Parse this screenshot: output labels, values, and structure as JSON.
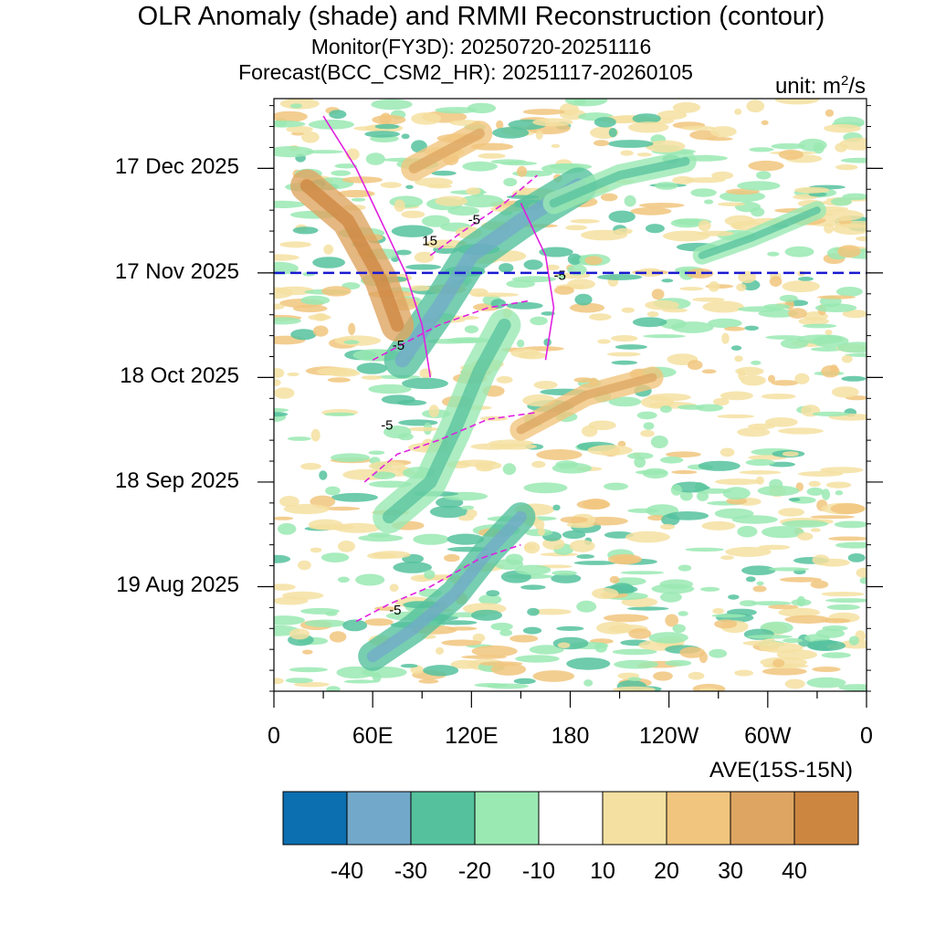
{
  "chart_data": {
    "type": "heatmap",
    "title": "OLR Anomaly (shade) and RMMI Reconstruction (contour)",
    "subtitle_monitor": "Monitor(FY3D): 20250720-20251116",
    "subtitle_forecast": "Forecast(BCC_CSM2_HR): 20251117-20260105",
    "unit_prefix": "unit: m",
    "unit_exp": "2",
    "unit_suffix": "/s",
    "region_label": "AVE(15S-15N)",
    "x_axis": {
      "ticks": [
        "0",
        "60E",
        "120E",
        "180",
        "120W",
        "60W",
        "0"
      ],
      "tick_lon": [
        0,
        60,
        120,
        180,
        240,
        300,
        360
      ],
      "range": [
        0,
        360
      ]
    },
    "y_axis": {
      "ticks": [
        "17 Dec 2025",
        "17 Nov 2025",
        "18 Oct 2025",
        "18 Sep 2025",
        "19 Aug 2025"
      ],
      "tick_day": [
        150,
        120,
        90,
        60,
        30
      ],
      "range": [
        0,
        170
      ],
      "start_date": "20250720",
      "end_date": "20260105"
    },
    "forecast_start_day": 120,
    "colorbar": {
      "levels": [
        "-40",
        "-30",
        "-20",
        "-10",
        "10",
        "20",
        "30",
        "40"
      ],
      "colors": [
        "#0b6fb0",
        "#72a9ca",
        "#55c29d",
        "#9ae9b3",
        "#ffffff",
        "#f4e0a1",
        "#f1c57e",
        "#dea562",
        "#cd8640"
      ]
    },
    "contour_labels": [
      {
        "text": "15",
        "lon": 90,
        "day": 128
      },
      {
        "text": "-5",
        "lon": 118,
        "day": 134
      },
      {
        "text": "-5",
        "lon": 170,
        "day": 118
      },
      {
        "text": "-5",
        "lon": 72,
        "day": 98
      },
      {
        "text": "-5",
        "lon": 65,
        "day": 75
      },
      {
        "text": "-5",
        "lon": 70,
        "day": 22
      }
    ],
    "anomaly_bands": [
      {
        "name": "convective-band-recent",
        "value": -30,
        "points": [
          [
            78,
            95
          ],
          [
            100,
            110
          ],
          [
            120,
            125
          ],
          [
            150,
            135
          ],
          [
            185,
            145
          ]
        ],
        "width": 10
      },
      {
        "name": "convective-band-mid",
        "value": -20,
        "points": [
          [
            70,
            50
          ],
          [
            95,
            60
          ],
          [
            110,
            75
          ],
          [
            125,
            92
          ],
          [
            140,
            105
          ]
        ],
        "width": 9
      },
      {
        "name": "convective-band-early",
        "value": -30,
        "points": [
          [
            60,
            10
          ],
          [
            85,
            18
          ],
          [
            110,
            28
          ],
          [
            130,
            40
          ],
          [
            150,
            50
          ]
        ],
        "width": 8
      },
      {
        "name": "suppressed-band-io",
        "value": 30,
        "points": [
          [
            20,
            145
          ],
          [
            45,
            135
          ],
          [
            65,
            118
          ],
          [
            75,
            105
          ]
        ],
        "width": 9
      },
      {
        "name": "suppressed-band-mc",
        "value": 20,
        "points": [
          [
            85,
            150
          ],
          [
            105,
            155
          ],
          [
            125,
            160
          ]
        ],
        "width": 7
      },
      {
        "name": "pacific-wet-band",
        "value": -20,
        "points": [
          [
            170,
            140
          ],
          [
            210,
            148
          ],
          [
            250,
            152
          ]
        ],
        "width": 6
      },
      {
        "name": "east-pacific-wet",
        "value": -20,
        "points": [
          [
            260,
            125
          ],
          [
            290,
            130
          ],
          [
            330,
            138
          ]
        ],
        "width": 5
      },
      {
        "name": "dry-band-pacific",
        "value": 20,
        "points": [
          [
            150,
            75
          ],
          [
            190,
            85
          ],
          [
            230,
            90
          ]
        ],
        "width": 6
      }
    ],
    "rmmi_contours": [
      {
        "name": "rmmi-pos-15",
        "level": 15,
        "points": [
          [
            30,
            165
          ],
          [
            50,
            150
          ],
          [
            65,
            135
          ],
          [
            80,
            120
          ],
          [
            90,
            105
          ],
          [
            95,
            90
          ]
        ]
      },
      {
        "name": "rmmi-neg-5a",
        "level": -5,
        "points": [
          [
            95,
            125
          ],
          [
            115,
            132
          ],
          [
            140,
            140
          ],
          [
            160,
            148
          ]
        ]
      },
      {
        "name": "rmmi-neg-5b",
        "level": -5,
        "points": [
          [
            60,
            95
          ],
          [
            80,
            100
          ],
          [
            100,
            105
          ],
          [
            130,
            110
          ],
          [
            155,
            112
          ]
        ]
      },
      {
        "name": "rmmi-neg-5c",
        "level": -5,
        "points": [
          [
            55,
            60
          ],
          [
            75,
            68
          ],
          [
            100,
            72
          ],
          [
            130,
            78
          ],
          [
            160,
            80
          ]
        ]
      },
      {
        "name": "rmmi-neg-5d",
        "level": -5,
        "points": [
          [
            50,
            20
          ],
          [
            70,
            25
          ],
          [
            95,
            30
          ],
          [
            125,
            38
          ],
          [
            150,
            42
          ]
        ]
      },
      {
        "name": "rmmi-pos-5e",
        "level": 5,
        "points": [
          [
            150,
            140
          ],
          [
            165,
            125
          ],
          [
            170,
            110
          ],
          [
            165,
            95
          ]
        ]
      }
    ]
  }
}
